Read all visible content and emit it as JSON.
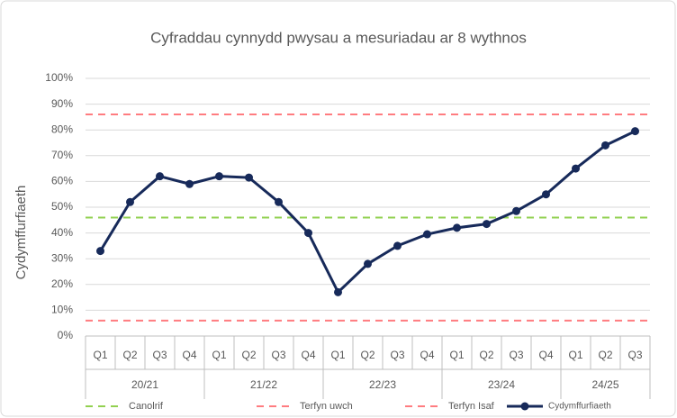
{
  "chart_data": {
    "type": "line",
    "title": "Cyfraddau cynnydd pwysau a mesuriadau ar 8 wythnos",
    "y_label": "Cydymffurfiaeth",
    "groups": [
      {
        "label": "20/21",
        "categories": [
          "Q1",
          "Q2",
          "Q3",
          "Q4"
        ]
      },
      {
        "label": "21/22",
        "categories": [
          "Q1",
          "Q2",
          "Q3",
          "Q4"
        ]
      },
      {
        "label": "22/23",
        "categories": [
          "Q1",
          "Q2",
          "Q3",
          "Q4"
        ]
      },
      {
        "label": "23/24",
        "categories": [
          "Q1",
          "Q2",
          "Q3",
          "Q4"
        ]
      },
      {
        "label": "24/25",
        "categories": [
          "Q1",
          "Q2",
          "Q3"
        ]
      }
    ],
    "reference_lines": [
      {
        "name": "Canolrif",
        "color": "#92d050",
        "value": 46
      },
      {
        "name": "Terfyn uwch",
        "color": "#ff7c80",
        "value": 86
      },
      {
        "name": "Terfyn Isaf",
        "color": "#ff7c80",
        "value": 6
      }
    ],
    "series": [
      {
        "name": "Cydymffurfiaeth",
        "color": "#172a5a",
        "values": [
          33,
          52,
          62,
          59,
          62,
          61.5,
          52,
          40,
          17,
          28,
          35,
          39.5,
          42,
          43.5,
          48.5,
          55,
          65,
          74,
          79.5
        ]
      }
    ],
    "ylim": [
      0,
      100
    ],
    "yticks": [
      {
        "value": 0,
        "label": "0%"
      },
      {
        "value": 10,
        "label": "10%"
      },
      {
        "value": 20,
        "label": "20%"
      },
      {
        "value": 30,
        "label": "30%"
      },
      {
        "value": 40,
        "label": "40%"
      },
      {
        "value": 50,
        "label": "50%"
      },
      {
        "value": 60,
        "label": "60%"
      },
      {
        "value": 70,
        "label": "70%"
      },
      {
        "value": 80,
        "label": "80%"
      },
      {
        "value": 90,
        "label": "90%"
      },
      {
        "value": 100,
        "label": "100%"
      }
    ],
    "grid": true
  }
}
